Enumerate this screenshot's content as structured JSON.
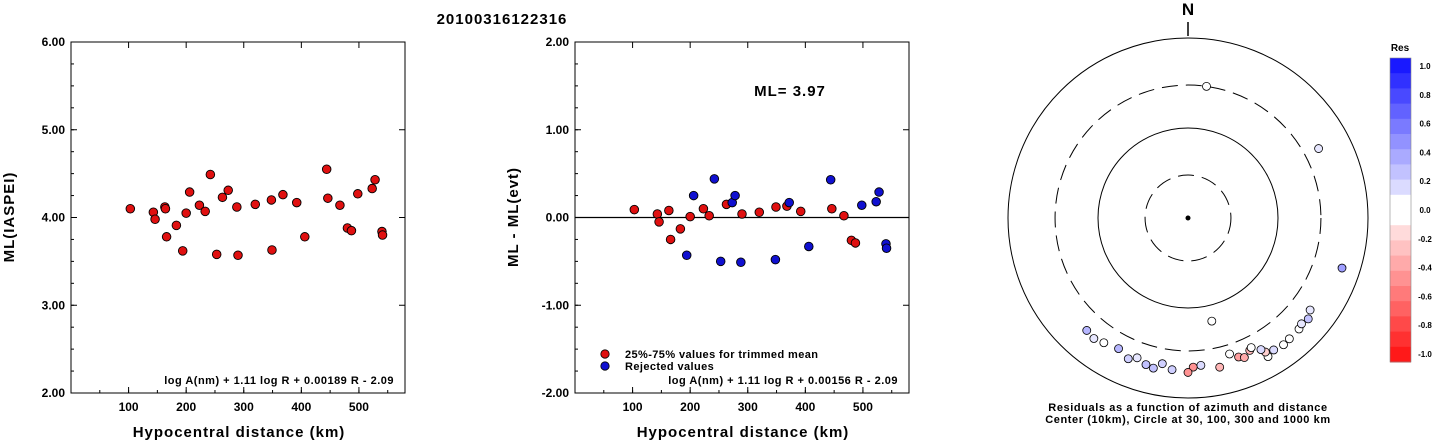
{
  "title": "20100316122316",
  "chart_data": [
    {
      "type": "scatter",
      "ylabel": "ML(IASPEI)",
      "xlabel": "Hypocentral distance (km)",
      "xlim": [
        0,
        580
      ],
      "ylim": [
        2.0,
        6.0
      ],
      "xticks": [
        "100",
        "200",
        "300",
        "400",
        "500"
      ],
      "yticks": [
        "2.00",
        "3.00",
        "4.00",
        "5.00",
        "6.00"
      ],
      "formula": "log A(nm) + 1.11 log R + 0.00189 R - 2.09",
      "point_color": "#e01010",
      "points": [
        [
          103,
          4.1
        ],
        [
          143,
          4.06
        ],
        [
          146,
          3.98
        ],
        [
          163,
          4.12
        ],
        [
          164,
          4.1
        ],
        [
          166,
          3.78
        ],
        [
          183,
          3.91
        ],
        [
          194,
          3.62
        ],
        [
          200,
          4.05
        ],
        [
          206,
          4.29
        ],
        [
          223,
          4.14
        ],
        [
          233,
          4.07
        ],
        [
          242,
          4.49
        ],
        [
          253,
          3.58
        ],
        [
          263,
          4.23
        ],
        [
          273,
          4.31
        ],
        [
          288,
          4.12
        ],
        [
          290,
          3.57
        ],
        [
          320,
          4.15
        ],
        [
          348,
          4.2
        ],
        [
          349,
          3.63
        ],
        [
          368,
          4.26
        ],
        [
          392,
          4.17
        ],
        [
          406,
          3.78
        ],
        [
          444,
          4.55
        ],
        [
          446,
          4.22
        ],
        [
          467,
          4.14
        ],
        [
          480,
          3.88
        ],
        [
          487,
          3.85
        ],
        [
          498,
          4.27
        ],
        [
          523,
          4.33
        ],
        [
          528,
          4.43
        ],
        [
          540,
          3.84
        ],
        [
          541,
          3.8
        ]
      ]
    },
    {
      "type": "scatter",
      "ylabel": "ML - ML(evt)",
      "xlabel": "Hypocentral distance (km)",
      "xlim": [
        0,
        580
      ],
      "ylim": [
        -2.0,
        2.0
      ],
      "xticks": [
        "100",
        "200",
        "300",
        "400",
        "500"
      ],
      "yticks": [
        "-2.00",
        "-1.00",
        "0.00",
        "1.00",
        "2.00"
      ],
      "annotation": "ML= 3.97",
      "formula": "log A(nm) + 1.11 log R + 0.00156 R - 2.09",
      "legend": [
        {
          "label": "25%-75% values for trimmed mean",
          "color": "#e01010"
        },
        {
          "label": "Rejected values",
          "color": "#1010d0"
        }
      ],
      "series": [
        {
          "name": "25%-75% values for trimmed mean",
          "color": "#e01010",
          "points": [
            [
              103,
              0.09
            ],
            [
              143,
              0.04
            ],
            [
              146,
              -0.05
            ],
            [
              163,
              0.08
            ],
            [
              166,
              -0.25
            ],
            [
              183,
              -0.13
            ],
            [
              200,
              0.01
            ],
            [
              223,
              0.1
            ],
            [
              233,
              0.02
            ],
            [
              263,
              0.15
            ],
            [
              290,
              0.04
            ],
            [
              320,
              0.06
            ],
            [
              349,
              0.12
            ],
            [
              368,
              0.13
            ],
            [
              392,
              0.07
            ],
            [
              446,
              0.1
            ],
            [
              467,
              0.02
            ],
            [
              480,
              -0.26
            ],
            [
              487,
              -0.29
            ]
          ]
        },
        {
          "name": "Rejected values",
          "color": "#1010d0",
          "points": [
            [
              194,
              -0.43
            ],
            [
              206,
              0.25
            ],
            [
              242,
              0.44
            ],
            [
              253,
              -0.5
            ],
            [
              273,
              0.17
            ],
            [
              278,
              0.25
            ],
            [
              288,
              -0.51
            ],
            [
              348,
              -0.48
            ],
            [
              372,
              0.17
            ],
            [
              406,
              -0.33
            ],
            [
              444,
              0.43
            ],
            [
              498,
              0.14
            ],
            [
              523,
              0.18
            ],
            [
              528,
              0.29
            ],
            [
              540,
              -0.3
            ],
            [
              541,
              -0.35
            ]
          ]
        }
      ]
    },
    {
      "type": "polar-scatter",
      "north_label": "N",
      "caption_line1": "Residuals as a function of azimuth and distance",
      "caption_line2": "Center (10km), Circle at 30, 100, 300 and 1000 km",
      "rings_km": [
        30,
        100,
        300,
        1000
      ],
      "points": [
        [
          8,
          300,
          0.05
        ],
        [
          62,
          440,
          0.1
        ],
        [
          108,
          630,
          0.4
        ],
        [
          167,
          150,
          0.05
        ],
        [
          135,
          555,
          0.05
        ],
        [
          140,
          565,
          -0.05
        ],
        [
          143,
          580,
          -0.05
        ],
        [
          147,
          560,
          0.15
        ],
        [
          150,
          600,
          0.05
        ],
        [
          127,
          500,
          0.1
        ],
        [
          130,
          555,
          0.25
        ],
        [
          133,
          530,
          0.1
        ],
        [
          150,
          525,
          -0.2
        ],
        [
          155,
          420,
          -0.3
        ],
        [
          160,
          440,
          -0.4
        ],
        [
          163,
          380,
          0.05
        ],
        [
          168,
          495,
          -0.3
        ],
        [
          175,
          440,
          0.15
        ],
        [
          178,
          455,
          -0.45
        ],
        [
          180,
          520,
          -0.45
        ],
        [
          186,
          495,
          0.2
        ],
        [
          190,
          440,
          0.2
        ],
        [
          193,
          515,
          0.25
        ],
        [
          196,
          495,
          0.25
        ],
        [
          200,
          450,
          0.1
        ],
        [
          203,
          500,
          0.2
        ],
        [
          208,
          440,
          0.3
        ],
        [
          218,
          500,
          0.1
        ],
        [
          222,
          480,
          0.3
        ],
        [
          214,
          470,
          0.05
        ],
        [
          154,
          400,
          0.05
        ],
        [
          158,
          470,
          -0.35
        ],
        [
          151,
          470,
          0.15
        ]
      ]
    }
  ],
  "colorbar": {
    "title": "Res",
    "ticks": [
      "1.0",
      "0.8",
      "0.6",
      "0.4",
      "0.2",
      "0.0",
      "-0.2",
      "-0.4",
      "-0.6",
      "-0.8",
      "-1.0"
    ]
  }
}
